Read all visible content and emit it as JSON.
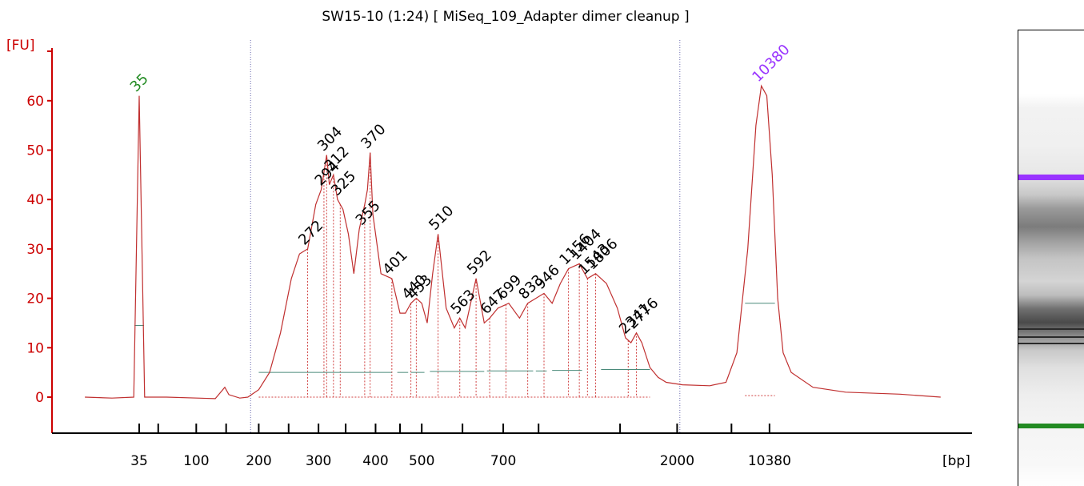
{
  "chart_data": {
    "type": "line",
    "title": "SW15-10 (1:24)  [ MiSeq_109_Adapter dimer cleanup ]",
    "ylabel": "[FU]",
    "xlabel": "[bp]",
    "ylim": [
      -7,
      70
    ],
    "yticks": [
      0,
      10,
      20,
      30,
      40,
      50,
      60
    ],
    "xticks": [
      {
        "label": "35",
        "t": 0.0
      },
      {
        "label": "100",
        "t": 0.21
      },
      {
        "label": "200",
        "t": 0.44
      },
      {
        "label": "300",
        "t": 0.66
      },
      {
        "label": "400",
        "t": 0.87
      },
      {
        "label": "500",
        "t": 1.04
      },
      {
        "label": "700",
        "t": 1.34
      },
      {
        "label": "2000",
        "t": 1.98
      },
      {
        "label": "10380",
        "t": 2.32
      }
    ],
    "xtick_marks_unlabeled": [
      0.07,
      0.32,
      0.55,
      0.76,
      0.96,
      1.19,
      1.47,
      1.77,
      2.18
    ],
    "marker_lines": [
      0.41,
      1.99
    ],
    "grid": false,
    "line_color": "#c03030",
    "axis_color": "#cc0000",
    "trace": [
      [
        -0.2,
        0.0
      ],
      [
        -0.1,
        -0.2
      ],
      [
        -0.02,
        0.0
      ],
      [
        0.0,
        61.0
      ],
      [
        0.02,
        0.0
      ],
      [
        0.1,
        0.0
      ],
      [
        0.28,
        -0.3
      ],
      [
        0.315,
        2.0
      ],
      [
        0.33,
        0.5
      ],
      [
        0.37,
        -0.2
      ],
      [
        0.4,
        0.0
      ],
      [
        0.44,
        1.5
      ],
      [
        0.48,
        5.0
      ],
      [
        0.52,
        13.0
      ],
      [
        0.56,
        24.0
      ],
      [
        0.59,
        29.0
      ],
      [
        0.62,
        30.0
      ],
      [
        0.65,
        39.0
      ],
      [
        0.67,
        42.0
      ],
      [
        0.69,
        49.0
      ],
      [
        0.7,
        43.0
      ],
      [
        0.715,
        45.0
      ],
      [
        0.73,
        40.0
      ],
      [
        0.75,
        38.0
      ],
      [
        0.77,
        33.0
      ],
      [
        0.79,
        25.0
      ],
      [
        0.81,
        34.0
      ],
      [
        0.83,
        39.0
      ],
      [
        0.84,
        42.0
      ],
      [
        0.85,
        49.5
      ],
      [
        0.86,
        37.0
      ],
      [
        0.87,
        33.0
      ],
      [
        0.89,
        25.0
      ],
      [
        0.93,
        24.0
      ],
      [
        0.96,
        17.0
      ],
      [
        0.98,
        17.0
      ],
      [
        1.0,
        19.0
      ],
      [
        1.02,
        20.0
      ],
      [
        1.04,
        19.0
      ],
      [
        1.06,
        15.0
      ],
      [
        1.08,
        25.0
      ],
      [
        1.1,
        33.0
      ],
      [
        1.13,
        18.0
      ],
      [
        1.16,
        14.0
      ],
      [
        1.18,
        16.0
      ],
      [
        1.2,
        14.0
      ],
      [
        1.24,
        24.0
      ],
      [
        1.26,
        18.0
      ],
      [
        1.27,
        15.0
      ],
      [
        1.29,
        16.0
      ],
      [
        1.32,
        18.0
      ],
      [
        1.36,
        19.0
      ],
      [
        1.4,
        16.0
      ],
      [
        1.43,
        19.0
      ],
      [
        1.46,
        20.0
      ],
      [
        1.49,
        21.0
      ],
      [
        1.52,
        19.0
      ],
      [
        1.55,
        23.0
      ],
      [
        1.58,
        26.0
      ],
      [
        1.62,
        27.0
      ],
      [
        1.65,
        24.0
      ],
      [
        1.68,
        25.0
      ],
      [
        1.72,
        23.0
      ],
      [
        1.76,
        18.0
      ],
      [
        1.79,
        12.0
      ],
      [
        1.81,
        11.0
      ],
      [
        1.83,
        13.0
      ],
      [
        1.85,
        11.0
      ],
      [
        1.88,
        6.0
      ],
      [
        1.91,
        4.0
      ],
      [
        1.94,
        3.0
      ],
      [
        2.0,
        2.5
      ],
      [
        2.1,
        2.3
      ],
      [
        2.16,
        3.0
      ],
      [
        2.2,
        9.0
      ],
      [
        2.24,
        30.0
      ],
      [
        2.27,
        55.0
      ],
      [
        2.29,
        63.0
      ],
      [
        2.31,
        61.0
      ],
      [
        2.33,
        45.0
      ],
      [
        2.35,
        20.0
      ],
      [
        2.37,
        9.0
      ],
      [
        2.4,
        5.0
      ],
      [
        2.48,
        2.0
      ],
      [
        2.6,
        1.0
      ],
      [
        2.8,
        0.6
      ],
      [
        2.95,
        0.0
      ]
    ],
    "peaks": [
      {
        "label": "35",
        "t": 0.0,
        "y": 61.0,
        "color": "#228b22",
        "marker": true
      },
      {
        "label": "272",
        "t": 0.62,
        "y": 30.0
      },
      {
        "label": "294",
        "t": 0.68,
        "y": 42.0
      },
      {
        "label": "304",
        "t": 0.69,
        "y": 49.0
      },
      {
        "label": "312",
        "t": 0.715,
        "y": 45.0
      },
      {
        "label": "325",
        "t": 0.74,
        "y": 40.0
      },
      {
        "label": "355",
        "t": 0.83,
        "y": 34.0
      },
      {
        "label": "370",
        "t": 0.85,
        "y": 49.5
      },
      {
        "label": "401",
        "t": 0.93,
        "y": 24.0
      },
      {
        "label": "440",
        "t": 1.0,
        "y": 19.0
      },
      {
        "label": "453",
        "t": 1.02,
        "y": 19.0
      },
      {
        "label": "510",
        "t": 1.1,
        "y": 33.0
      },
      {
        "label": "563",
        "t": 1.18,
        "y": 16.0
      },
      {
        "label": "592",
        "t": 1.24,
        "y": 24.0
      },
      {
        "label": "647",
        "t": 1.29,
        "y": 16.0
      },
      {
        "label": "699",
        "t": 1.35,
        "y": 19.0
      },
      {
        "label": "833",
        "t": 1.43,
        "y": 19.0
      },
      {
        "label": "946",
        "t": 1.49,
        "y": 21.0
      },
      {
        "label": "1156",
        "t": 1.58,
        "y": 26.0
      },
      {
        "label": "1404",
        "t": 1.62,
        "y": 27.0
      },
      {
        "label": "1543",
        "t": 1.65,
        "y": 24.0
      },
      {
        "label": "1806",
        "t": 1.68,
        "y": 25.0
      },
      {
        "label": "2341",
        "t": 1.8,
        "y": 12.0
      },
      {
        "label": "2776",
        "t": 1.83,
        "y": 13.0
      },
      {
        "label": "10380",
        "t": 2.29,
        "y": 63.0,
        "color": "#9933ff",
        "marker": true
      }
    ],
    "baselines": [
      {
        "t0": 0.44,
        "t1": 0.93,
        "y": 5.0
      },
      {
        "t0": 0.95,
        "t1": 0.99,
        "y": 5.0
      },
      {
        "t0": 1.0,
        "t1": 1.05,
        "y": 5.0
      },
      {
        "t0": 1.07,
        "t1": 1.27,
        "y": 5.2
      },
      {
        "t0": 1.28,
        "t1": 1.45,
        "y": 5.3
      },
      {
        "t0": 1.46,
        "t1": 1.5,
        "y": 5.3
      },
      {
        "t0": 1.52,
        "t1": 1.63,
        "y": 5.4
      },
      {
        "t0": 1.7,
        "t1": 1.88,
        "y": 5.6
      },
      {
        "t0": 2.23,
        "t1": 2.34,
        "y": 19.0
      },
      {
        "t0": 0.0,
        "t1": 0.0,
        "y": 14.5
      }
    ]
  },
  "gel": {
    "upper_marker_color": "#9933ff",
    "lower_marker_color": "#228b22"
  }
}
